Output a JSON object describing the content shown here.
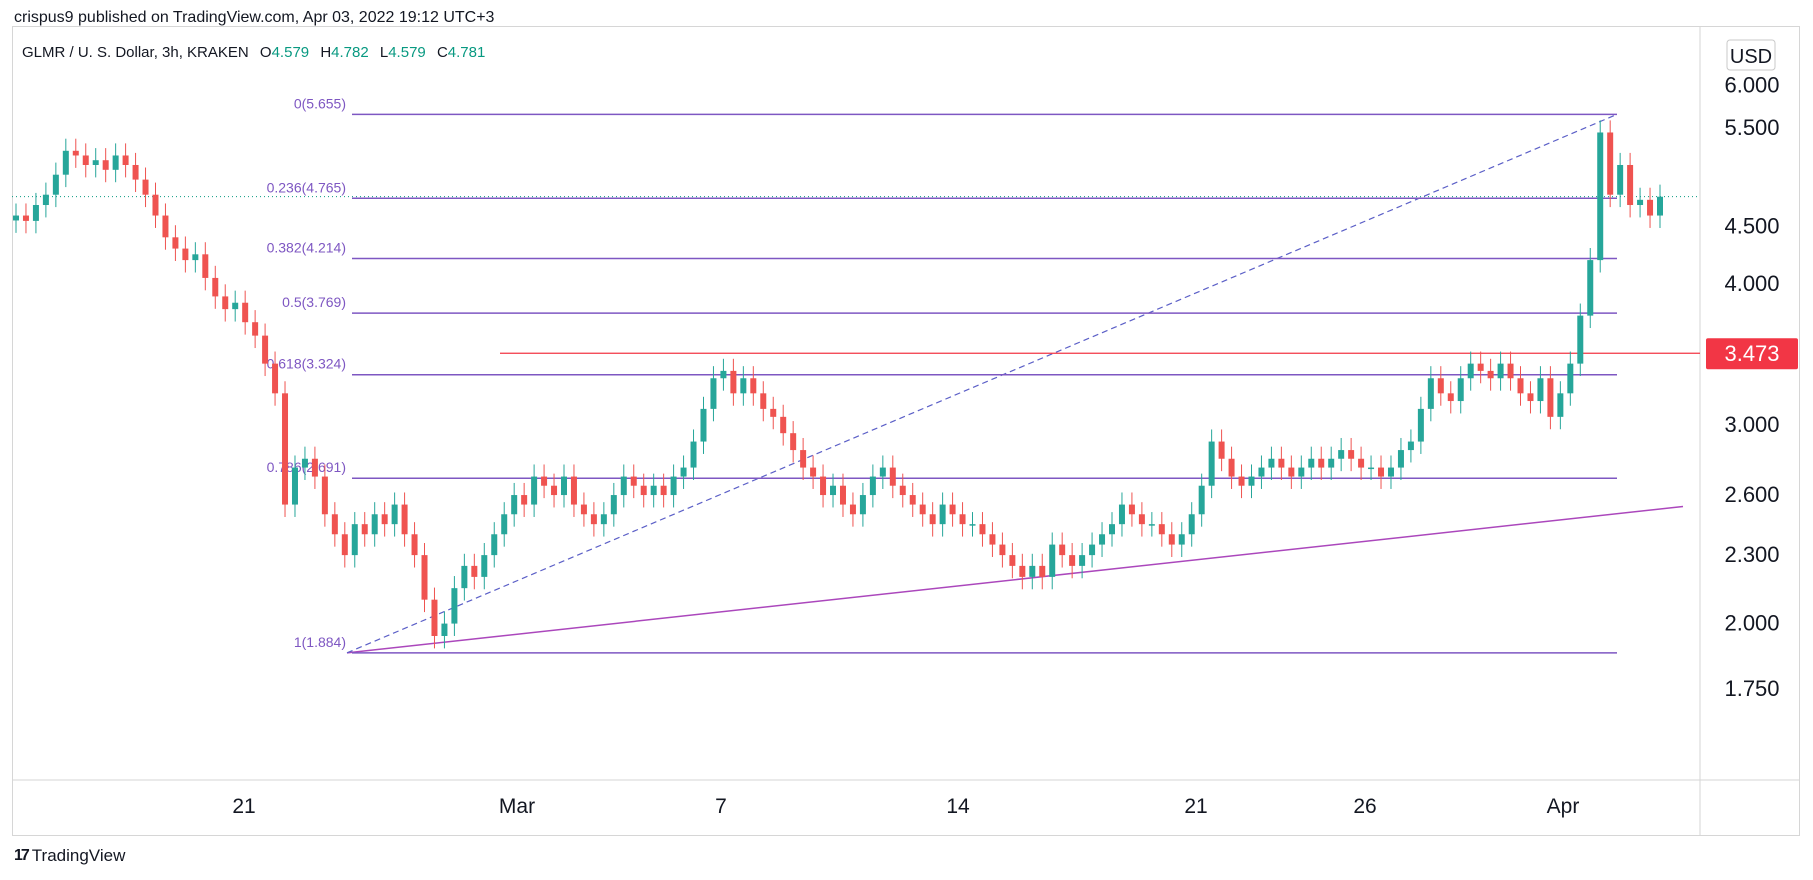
{
  "header": {
    "published": "crispus9 published on TradingView.com, Apr 03, 2022 19:12 UTC+3"
  },
  "symbol": {
    "name": "GLMR / U. S. Dollar, 3h, KRAKEN",
    "o_label": "O",
    "o_value": "4.579",
    "h_label": "H",
    "h_value": "4.782",
    "l_label": "L",
    "l_value": "4.579",
    "c_label": "C",
    "c_value": "4.781"
  },
  "footer": {
    "brand": "TradingView"
  },
  "colors": {
    "up": "#26a69a",
    "down": "#ef5350",
    "fib": "#7e57c2",
    "trend": "#ab47bc",
    "support": "#f23645",
    "price_badge": "#f23645"
  },
  "chart_data": {
    "type": "candlestick",
    "currency": "USD",
    "x_tick_labels": [
      "21",
      "Mar",
      "7",
      "14",
      "21",
      "26",
      "Apr"
    ],
    "y_tick_labels": [
      "6.000",
      "5.500",
      "4.500",
      "4.000",
      "3.000",
      "2.600",
      "2.300",
      "2.000",
      "1.750"
    ],
    "price_axis_badge": "3.473",
    "fib_levels": [
      {
        "label": "0(5.655)",
        "value": 5.655
      },
      {
        "label": "0.236(4.765)",
        "value": 4.765
      },
      {
        "label": "0.382(4.214)",
        "value": 4.214
      },
      {
        "label": "0.5(3.769)",
        "value": 3.769
      },
      {
        "label": "0.618(3.324)",
        "value": 3.324
      },
      {
        "label": "0.786(2.691)",
        "value": 2.691
      },
      {
        "label": "1(1.884)",
        "value": 1.884
      }
    ],
    "horizontal_line": 3.473,
    "approx_closes": [
      4.6,
      4.55,
      4.7,
      4.8,
      5.0,
      5.25,
      5.2,
      5.1,
      5.15,
      5.05,
      5.2,
      5.1,
      4.95,
      4.8,
      4.6,
      4.4,
      4.3,
      4.2,
      4.25,
      4.05,
      3.9,
      3.8,
      3.85,
      3.7,
      3.6,
      3.4,
      3.2,
      2.55,
      2.75,
      2.8,
      2.7,
      2.5,
      2.4,
      2.3,
      2.45,
      2.4,
      2.5,
      2.45,
      2.55,
      2.4,
      2.3,
      2.1,
      1.95,
      2.0,
      2.15,
      2.25,
      2.2,
      2.3,
      2.4,
      2.5,
      2.6,
      2.55,
      2.7,
      2.65,
      2.6,
      2.7,
      2.55,
      2.5,
      2.45,
      2.5,
      2.6,
      2.7,
      2.65,
      2.6,
      2.65,
      2.6,
      2.7,
      2.75,
      2.9,
      3.1,
      3.3,
      3.35,
      3.2,
      3.3,
      3.2,
      3.1,
      3.05,
      2.95,
      2.85,
      2.75,
      2.7,
      2.6,
      2.65,
      2.55,
      2.5,
      2.6,
      2.7,
      2.75,
      2.65,
      2.6,
      2.55,
      2.5,
      2.45,
      2.55,
      2.5,
      2.45,
      2.45,
      2.4,
      2.35,
      2.3,
      2.25,
      2.2,
      2.25,
      2.2,
      2.35,
      2.3,
      2.25,
      2.3,
      2.35,
      2.4,
      2.45,
      2.55,
      2.5,
      2.45,
      2.45,
      2.4,
      2.35,
      2.4,
      2.5,
      2.65,
      2.9,
      2.8,
      2.7,
      2.65,
      2.7,
      2.75,
      2.8,
      2.75,
      2.7,
      2.75,
      2.8,
      2.75,
      2.8,
      2.85,
      2.8,
      2.75,
      2.75,
      2.7,
      2.75,
      2.85,
      2.9,
      3.1,
      3.3,
      3.2,
      3.15,
      3.3,
      3.4,
      3.35,
      3.3,
      3.4,
      3.3,
      3.2,
      3.15,
      3.3,
      3.05,
      3.2,
      3.4,
      3.75,
      4.2,
      5.45,
      4.8,
      5.1,
      4.7,
      4.75,
      4.6,
      4.78
    ]
  }
}
